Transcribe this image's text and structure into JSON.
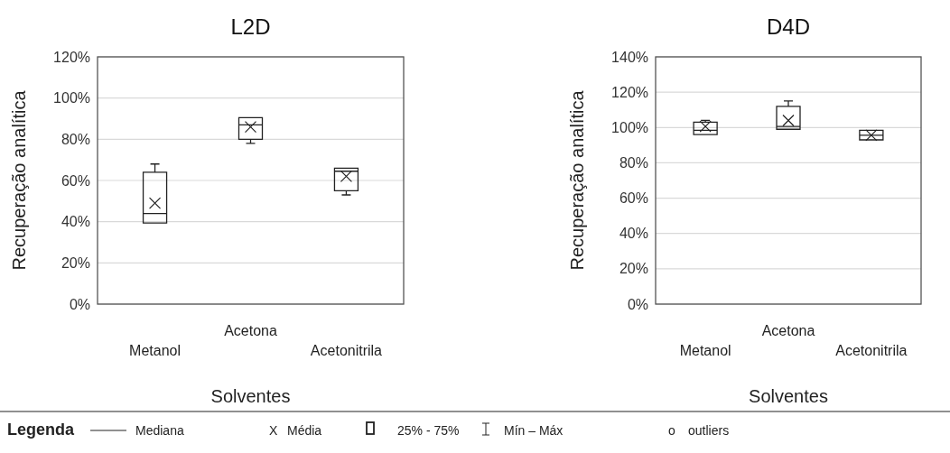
{
  "chart_data": [
    {
      "type": "box",
      "title": "L2D",
      "xlabel": "Solventes",
      "ylabel": "Recuperação analítica",
      "categories": [
        "Metanol",
        "Acetona",
        "Acetonitrila"
      ],
      "ylim": [
        0,
        120
      ],
      "yticks": [
        {
          "value": 0,
          "label": "0%"
        },
        {
          "value": 20,
          "label": "20%"
        },
        {
          "value": 40,
          "label": "40%"
        },
        {
          "value": 60,
          "label": "60%"
        },
        {
          "value": 80,
          "label": "80%"
        },
        {
          "value": 100,
          "label": "100%"
        },
        {
          "value": 120,
          "label": "120%"
        }
      ],
      "grid": "y",
      "boxes": [
        {
          "low": 39.4,
          "q1": 39.4,
          "median": 44,
          "q3": 64,
          "high": 68,
          "mean": 49
        },
        {
          "low": 78,
          "q1": 80,
          "median": 87,
          "q3": 90.5,
          "high": 90.5,
          "mean": 86
        },
        {
          "low": 53,
          "q1": 55,
          "median": 64.5,
          "q3": 66,
          "high": 66,
          "mean": 62
        }
      ]
    },
    {
      "type": "box",
      "title": "D4D",
      "xlabel": "Solventes",
      "ylabel": "Recuperação analítica",
      "categories": [
        "Metanol",
        "Acetona",
        "Acetonitrila"
      ],
      "ylim": [
        0,
        140
      ],
      "yticks": [
        {
          "value": 0,
          "label": "0%"
        },
        {
          "value": 20,
          "label": "20%"
        },
        {
          "value": 40,
          "label": "40%"
        },
        {
          "value": 60,
          "label": "60%"
        },
        {
          "value": 80,
          "label": "80%"
        },
        {
          "value": 100,
          "label": "100%"
        },
        {
          "value": 120,
          "label": "120%"
        },
        {
          "value": 140,
          "label": "140%"
        }
      ],
      "grid": "y",
      "boxes": [
        {
          "low": 96,
          "q1": 96,
          "median": 98.4,
          "q3": 103,
          "high": 104,
          "mean": 100.6
        },
        {
          "low": 99,
          "q1": 99,
          "median": 100.6,
          "q3": 112,
          "high": 115,
          "mean": 104
        },
        {
          "low": 93,
          "q1": 93,
          "median": 95.6,
          "q3": 98.4,
          "high": 98.4,
          "mean": 95.6
        }
      ]
    },
    {
      "type": "other",
      "annotations": [
        "Legenda",
        "Mediana",
        "X",
        "Média",
        "25% - 75%",
        "Mín – Máx",
        "o",
        "outliers"
      ]
    }
  ]
}
